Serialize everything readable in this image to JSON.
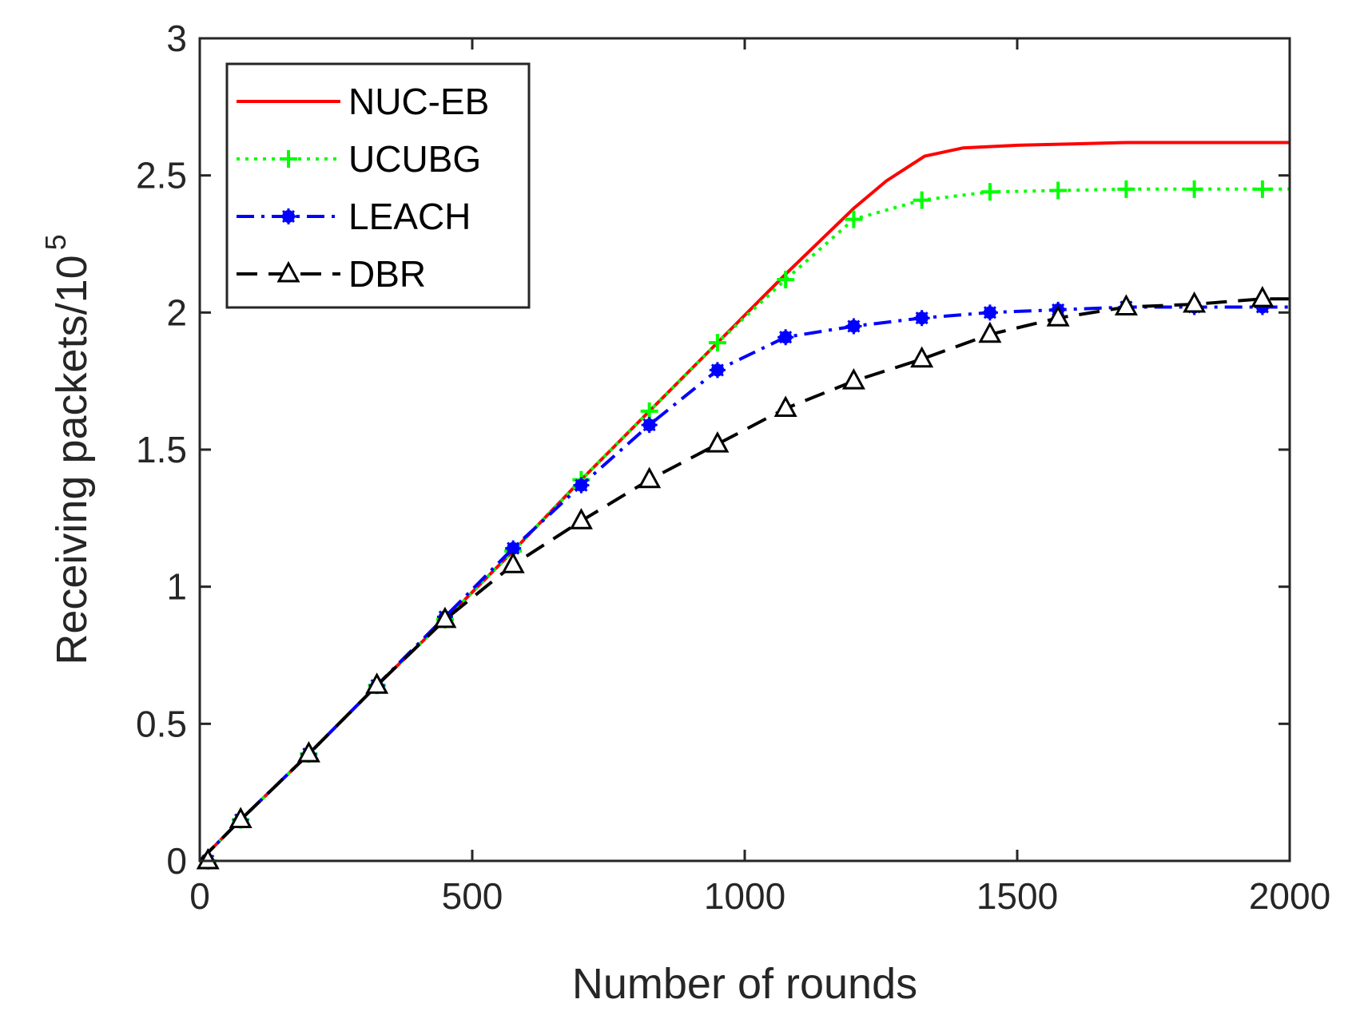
{
  "chart_data": {
    "type": "line",
    "title": "",
    "xlabel": "Number of rounds",
    "ylabel": "Receiving packets/10",
    "ylabel_exponent": "5",
    "xlim": [
      0,
      2000
    ],
    "ylim": [
      0,
      3
    ],
    "xticks": [
      0,
      500,
      1000,
      1500,
      2000
    ],
    "yticks": [
      0,
      0.5,
      1,
      1.5,
      2,
      2.5,
      3
    ],
    "xtick_labels": [
      "0",
      "500",
      "1000",
      "1500",
      "2000"
    ],
    "ytick_labels": [
      "0",
      "0.5",
      "1",
      "1.5",
      "2",
      "2.5",
      "3"
    ],
    "grid": false,
    "legend_position": "top-left",
    "series": [
      {
        "name": "NUC-EB",
        "color": "#ff0000",
        "dash": "solid",
        "marker": "none",
        "x": [
          0,
          75,
          200,
          325,
          450,
          575,
          700,
          825,
          950,
          1075,
          1200,
          1260,
          1330,
          1400,
          1500,
          1600,
          1700,
          1800,
          1900,
          2000
        ],
        "y": [
          0,
          0.15,
          0.39,
          0.64,
          0.88,
          1.13,
          1.39,
          1.64,
          1.89,
          2.14,
          2.38,
          2.48,
          2.57,
          2.6,
          2.61,
          2.615,
          2.62,
          2.62,
          2.62,
          2.62
        ]
      },
      {
        "name": "UCUBG",
        "color": "#00ff00",
        "dash": "dotted",
        "marker": "plus",
        "x": [
          0,
          75,
          200,
          325,
          450,
          575,
          700,
          825,
          950,
          1075,
          1200,
          1325,
          1450,
          1575,
          1700,
          1825,
          1950,
          2000
        ],
        "y": [
          0,
          0.15,
          0.39,
          0.64,
          0.88,
          1.13,
          1.39,
          1.64,
          1.89,
          2.12,
          2.34,
          2.41,
          2.44,
          2.445,
          2.45,
          2.45,
          2.45,
          2.45
        ]
      },
      {
        "name": "LEACH",
        "color": "#0000ff",
        "dash": "dashdot",
        "marker": "star",
        "x": [
          0,
          75,
          200,
          325,
          450,
          575,
          700,
          825,
          950,
          1075,
          1200,
          1325,
          1450,
          1575,
          1700,
          1825,
          1950,
          2000
        ],
        "y": [
          0,
          0.15,
          0.39,
          0.64,
          0.89,
          1.14,
          1.37,
          1.59,
          1.79,
          1.91,
          1.95,
          1.98,
          2.0,
          2.01,
          2.02,
          2.02,
          2.02,
          2.02
        ]
      },
      {
        "name": "DBR",
        "color": "#000000",
        "dash": "dashed",
        "marker": "triangle",
        "x": [
          0,
          75,
          200,
          325,
          450,
          575,
          700,
          825,
          950,
          1075,
          1200,
          1325,
          1450,
          1575,
          1700,
          1825,
          1950,
          2000
        ],
        "y": [
          0,
          0.15,
          0.39,
          0.64,
          0.88,
          1.08,
          1.24,
          1.39,
          1.52,
          1.65,
          1.75,
          1.83,
          1.92,
          1.98,
          2.02,
          2.03,
          2.05,
          2.05
        ]
      }
    ]
  }
}
